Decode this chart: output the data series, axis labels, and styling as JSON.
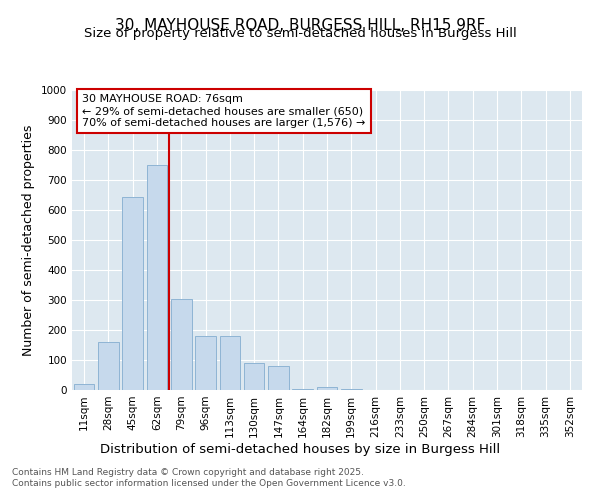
{
  "title_line1": "30, MAYHOUSE ROAD, BURGESS HILL, RH15 9RF",
  "title_line2": "Size of property relative to semi-detached houses in Burgess Hill",
  "xlabel": "Distribution of semi-detached houses by size in Burgess Hill",
  "ylabel": "Number of semi-detached properties",
  "categories": [
    "11sqm",
    "28sqm",
    "45sqm",
    "62sqm",
    "79sqm",
    "96sqm",
    "113sqm",
    "130sqm",
    "147sqm",
    "164sqm",
    "182sqm",
    "199sqm",
    "216sqm",
    "233sqm",
    "250sqm",
    "267sqm",
    "284sqm",
    "301sqm",
    "318sqm",
    "335sqm",
    "352sqm"
  ],
  "values": [
    20,
    160,
    645,
    750,
    305,
    180,
    180,
    90,
    80,
    5,
    10,
    5,
    0,
    0,
    0,
    0,
    0,
    0,
    0,
    0,
    0
  ],
  "bar_color": "#c6d9ec",
  "bar_edge_color": "#8eb4d4",
  "vline_bin_index": 4,
  "annotation_line1": "30 MAYHOUSE ROAD: 76sqm",
  "annotation_line2": "← 29% of semi-detached houses are smaller (650)",
  "annotation_line3": "70% of semi-detached houses are larger (1,576) →",
  "annotation_box_color": "#ffffff",
  "annotation_box_edge_color": "#cc0000",
  "vline_color": "#cc0000",
  "ylim": [
    0,
    1000
  ],
  "yticks": [
    0,
    100,
    200,
    300,
    400,
    500,
    600,
    700,
    800,
    900,
    1000
  ],
  "background_color": "#dde8f0",
  "footer_line1": "Contains HM Land Registry data © Crown copyright and database right 2025.",
  "footer_line2": "Contains public sector information licensed under the Open Government Licence v3.0.",
  "title_fontsize": 11,
  "subtitle_fontsize": 9.5,
  "axis_label_fontsize": 9,
  "tick_fontsize": 7.5,
  "annotation_fontsize": 8,
  "footer_fontsize": 6.5
}
